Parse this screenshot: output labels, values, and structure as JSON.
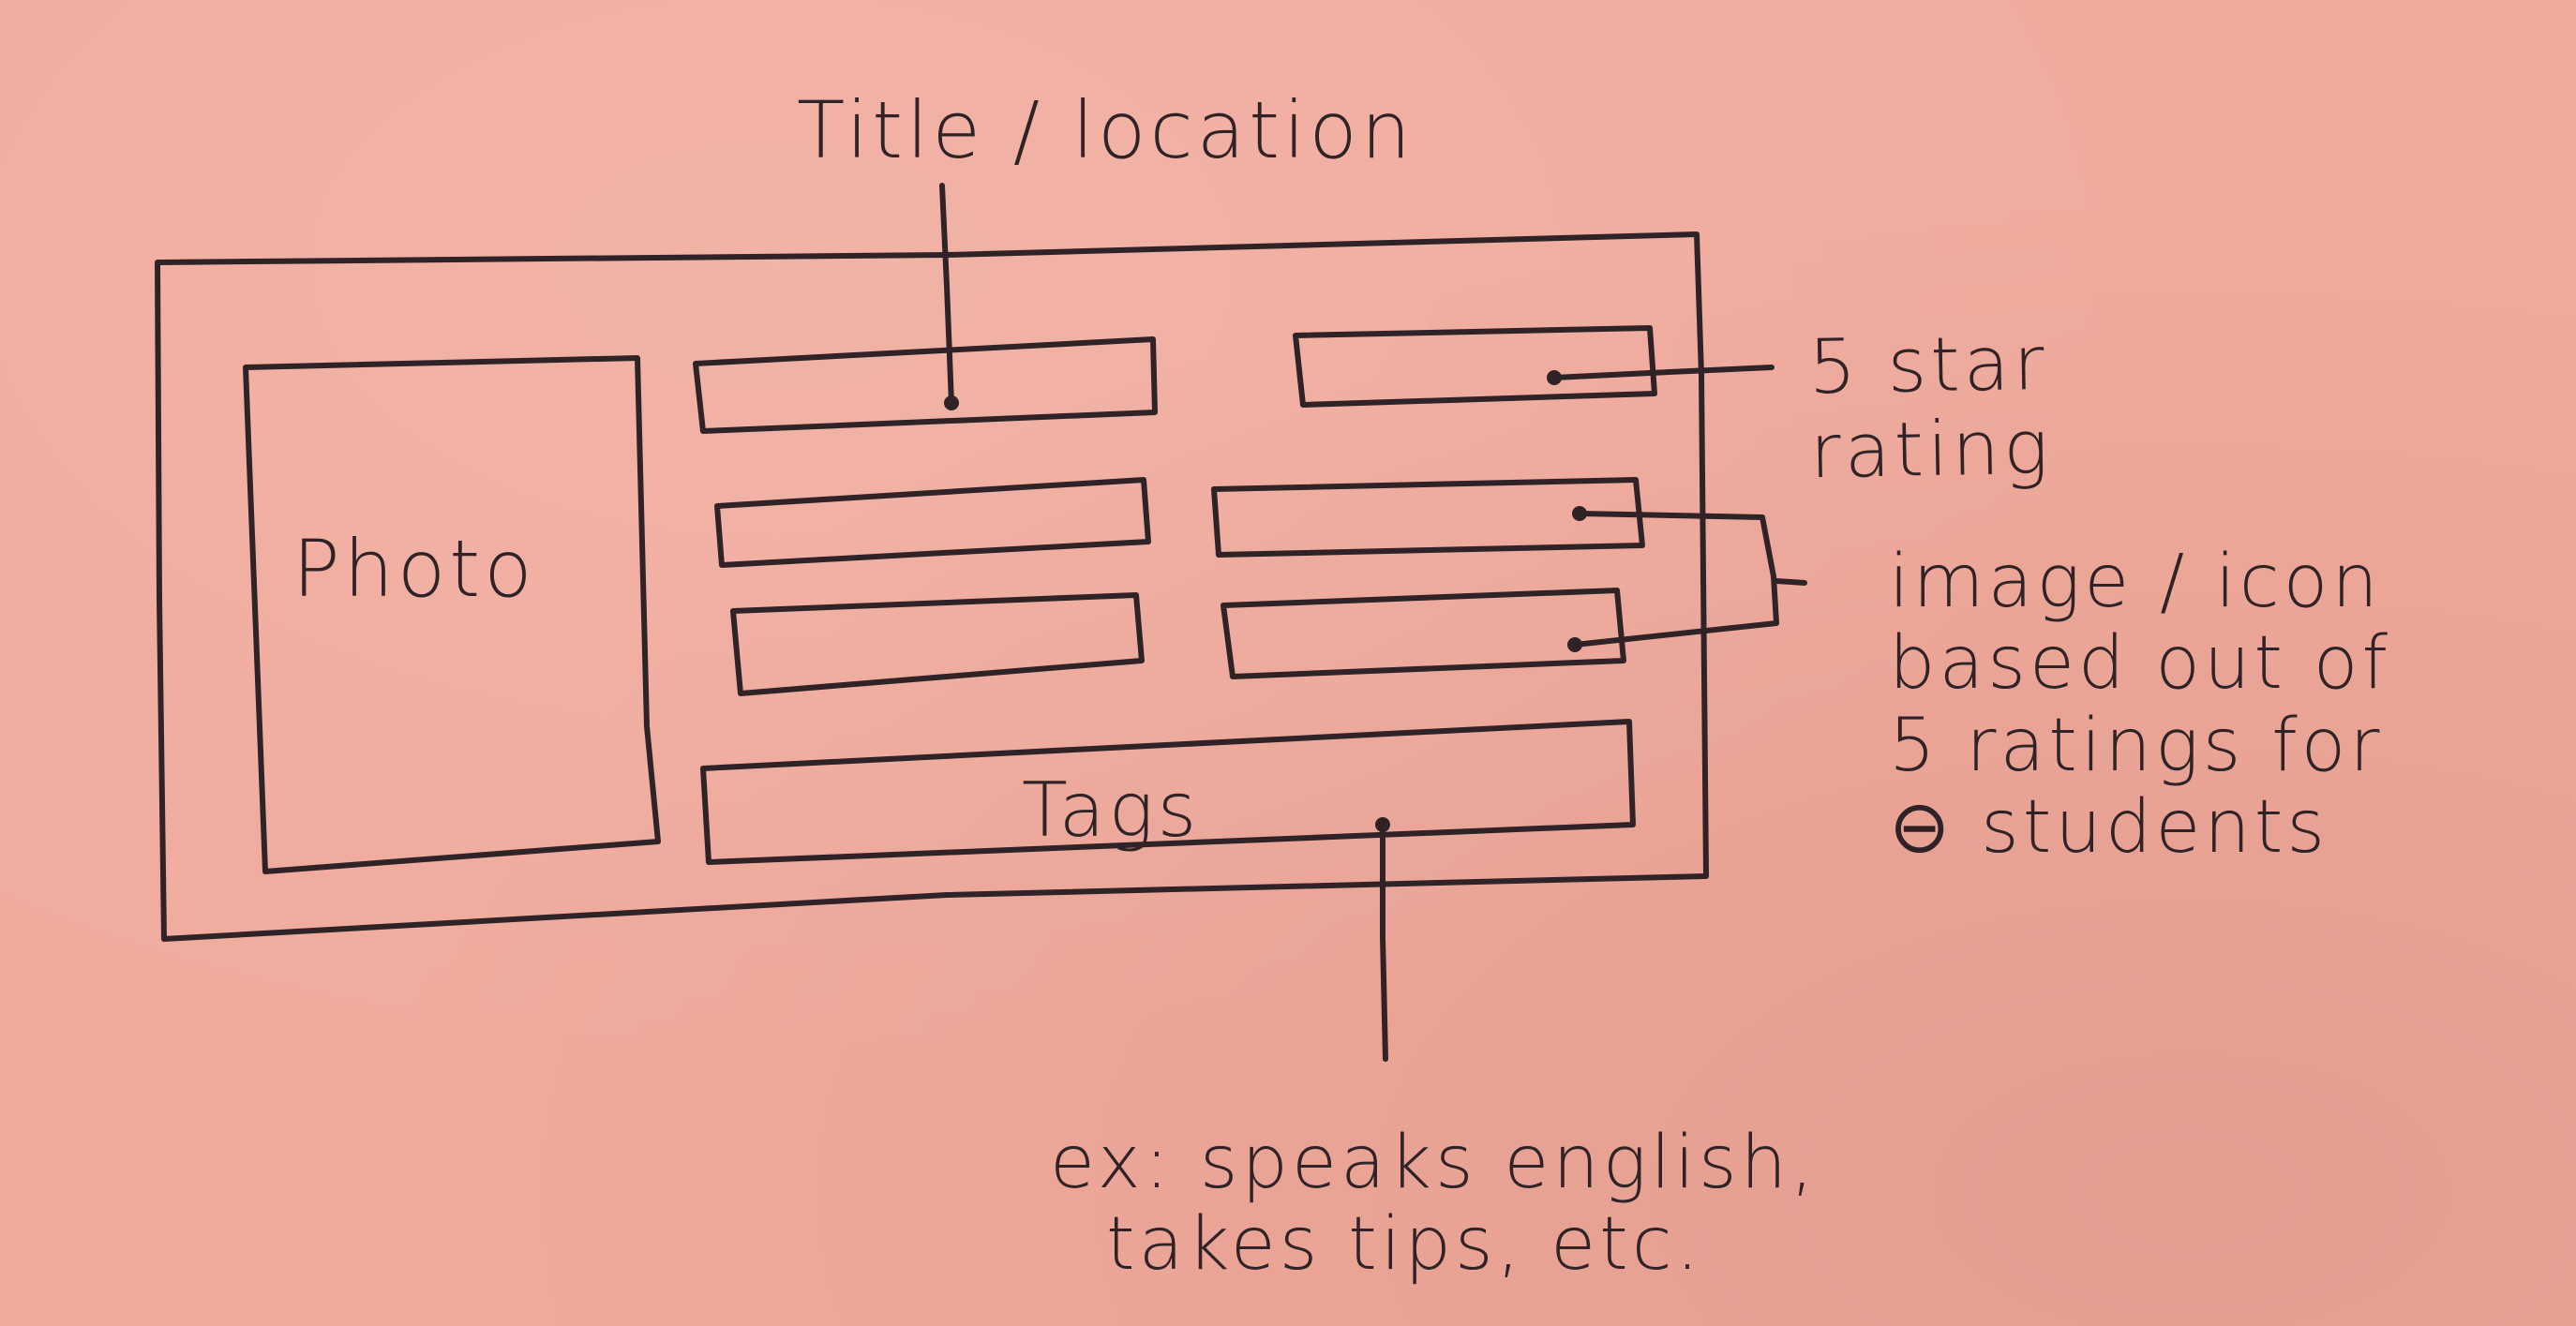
{
  "annotations": {
    "title_location": "Title / location",
    "five_star_rating": [
      "5 star",
      "rating"
    ],
    "photo": "Photo",
    "tags": "Tags",
    "image_icon": [
      "image / icon",
      "based out of",
      "5 ratings for",
      "⊖ students"
    ],
    "tags_example": [
      "ex: speaks english,",
      "takes tips, etc."
    ]
  },
  "colors": {
    "paper": "#f0ab9d",
    "ink": "#2f2327"
  }
}
